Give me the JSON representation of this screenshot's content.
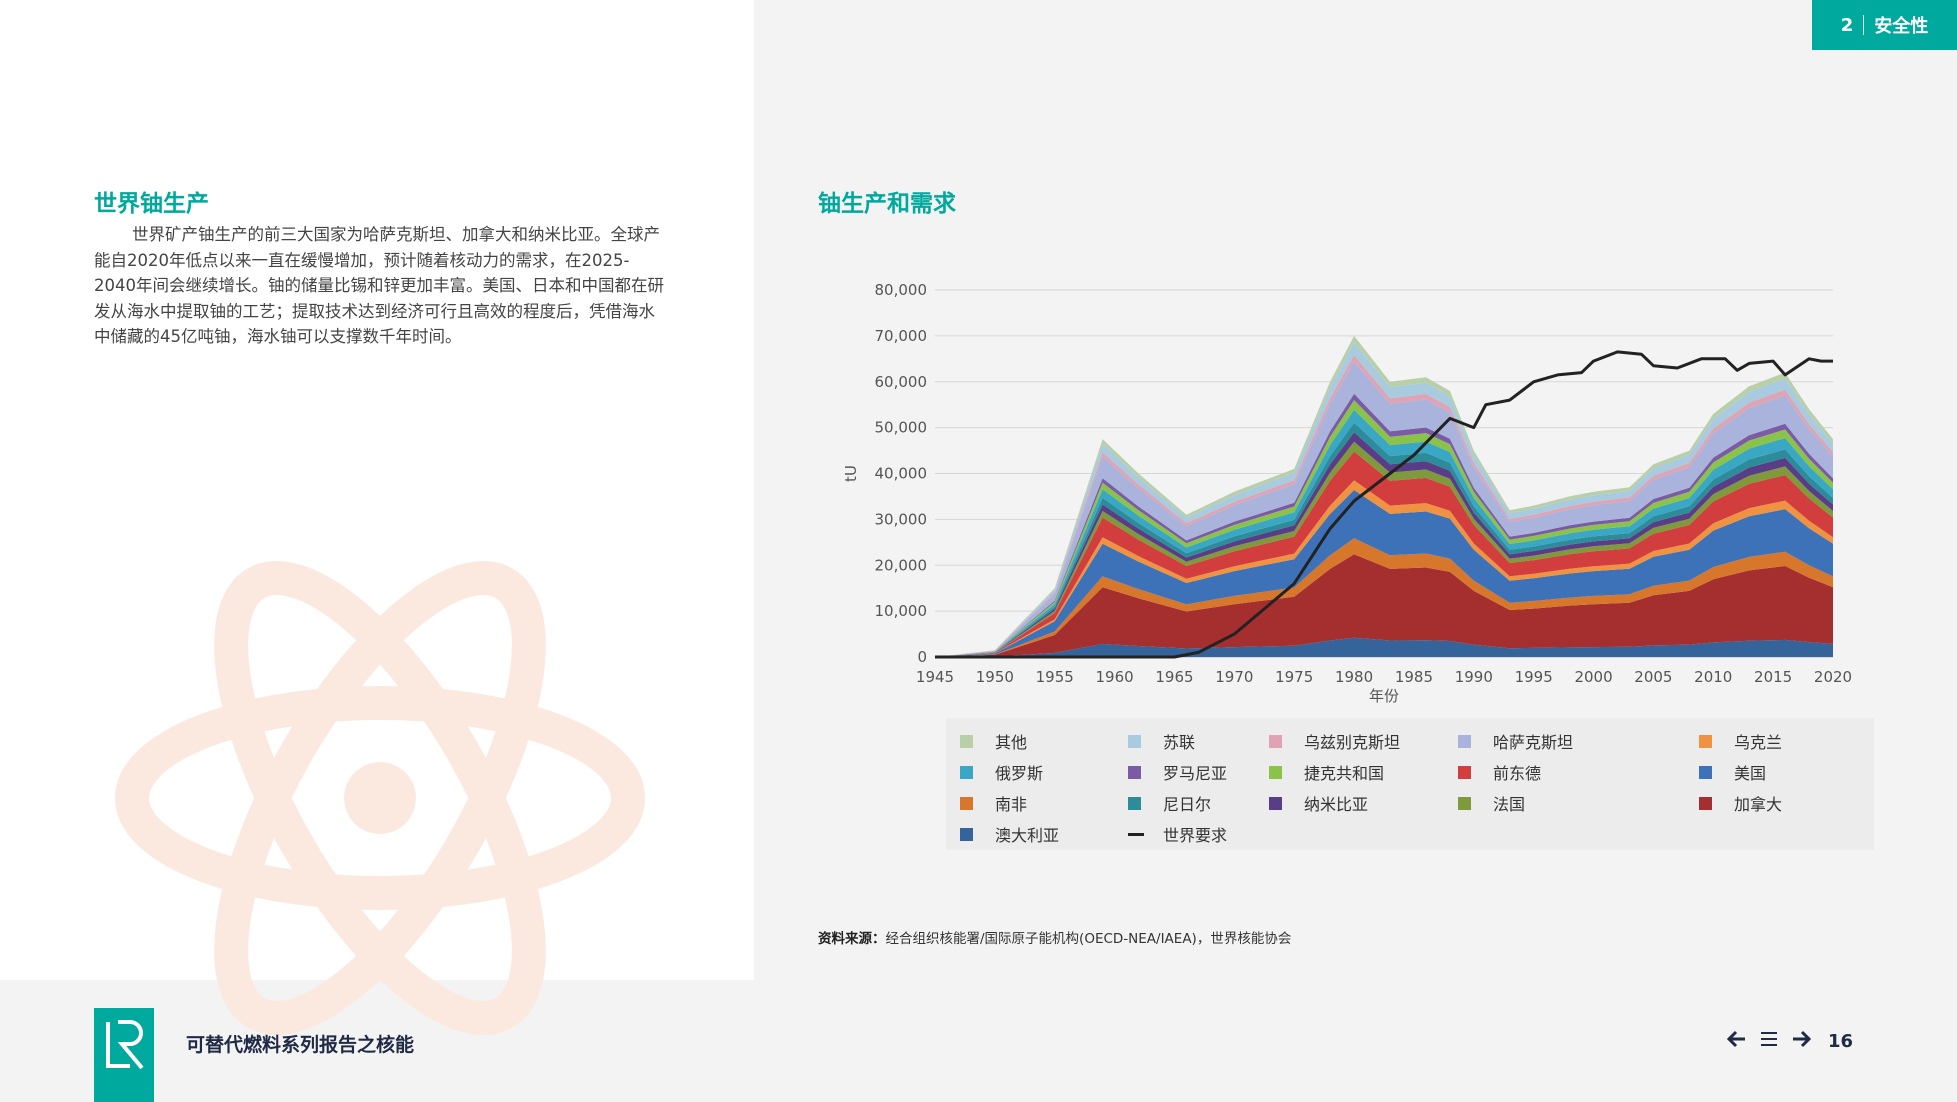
{
  "header": {
    "section_number": "2",
    "section_label": "安全性"
  },
  "left": {
    "title": "世界铀生产",
    "body": "世界矿产铀生产的前三大国家为哈萨克斯坦、加拿大和纳米比亚。全球产能自2020年低点以来一直在缓慢增加，预计随着核动力的需求，在2025-2040年间会继续增长。铀的储量比锡和锌更加丰富。美国、日本和中国都在研发从海水中提取铀的工艺；提取技术达到经济可行且高效的程度后，凭借海水中储藏的45亿吨铀，海水铀可以支撑数千年时间。"
  },
  "right": {
    "title": "铀生产和需求"
  },
  "chart_data": {
    "type": "area",
    "stacked": true,
    "xlabel": "年份",
    "ylabel": "tU",
    "x_ticks": [
      "1945",
      "1950",
      "1955",
      "1960",
      "1965",
      "1970",
      "1975",
      "1980",
      "1985",
      "1990",
      "1995",
      "2000",
      "2005",
      "2010",
      "2015",
      "2020"
    ],
    "y_ticks": [
      "0",
      "10,000",
      "20,000",
      "30,000",
      "40,000",
      "50,000",
      "60,000",
      "70,000",
      "80,000"
    ],
    "ylim": [
      0,
      80000
    ],
    "xlim": [
      1945,
      2020
    ],
    "grid": true,
    "total_production": [
      [
        1945,
        0
      ],
      [
        1950,
        1500
      ],
      [
        1955,
        15000
      ],
      [
        1959,
        47500
      ],
      [
        1962,
        40000
      ],
      [
        1966,
        31000
      ],
      [
        1970,
        36000
      ],
      [
        1975,
        41000
      ],
      [
        1978,
        60000
      ],
      [
        1980,
        70000
      ],
      [
        1983,
        60000
      ],
      [
        1986,
        61000
      ],
      [
        1988,
        58000
      ],
      [
        1990,
        45000
      ],
      [
        1993,
        32000
      ],
      [
        1995,
        33000
      ],
      [
        1998,
        35000
      ],
      [
        2000,
        36000
      ],
      [
        2003,
        37000
      ],
      [
        2005,
        42000
      ],
      [
        2008,
        45000
      ],
      [
        2010,
        53000
      ],
      [
        2013,
        59000
      ],
      [
        2016,
        62000
      ],
      [
        2018,
        54000
      ],
      [
        2020,
        47500
      ]
    ],
    "world_demand": [
      [
        1945,
        0
      ],
      [
        1965,
        0
      ],
      [
        1967,
        1000
      ],
      [
        1970,
        5000
      ],
      [
        1975,
        16000
      ],
      [
        1978,
        28000
      ],
      [
        1980,
        34000
      ],
      [
        1983,
        40000
      ],
      [
        1985,
        44000
      ],
      [
        1988,
        52000
      ],
      [
        1990,
        50000
      ],
      [
        1991,
        55000
      ],
      [
        1993,
        56000
      ],
      [
        1995,
        60000
      ],
      [
        1997,
        61500
      ],
      [
        1999,
        62000
      ],
      [
        2000,
        64500
      ],
      [
        2002,
        66500
      ],
      [
        2004,
        66000
      ],
      [
        2005,
        63500
      ],
      [
        2007,
        63000
      ],
      [
        2009,
        65000
      ],
      [
        2011,
        65000
      ],
      [
        2012,
        62500
      ],
      [
        2013,
        64000
      ],
      [
        2015,
        64500
      ],
      [
        2016,
        61500
      ],
      [
        2018,
        65000
      ],
      [
        2019,
        64500
      ],
      [
        2020,
        64500
      ]
    ],
    "series": [
      {
        "name": "澳大利亚",
        "color": "#35649a",
        "share": 0.06
      },
      {
        "name": "加拿大",
        "color": "#a52e2e",
        "share": 0.26
      },
      {
        "name": "南非",
        "color": "#d7772c",
        "share": 0.05
      },
      {
        "name": "美国",
        "color": "#3e72b8",
        "share": 0.15
      },
      {
        "name": "乌克兰",
        "color": "#ef9342",
        "share": 0.03
      },
      {
        "name": "前东德",
        "color": "#d23e3e",
        "share": 0.09
      },
      {
        "name": "法国",
        "color": "#7f9a3c",
        "share": 0.03
      },
      {
        "name": "纳米比亚",
        "color": "#5a3d87",
        "share": 0.03
      },
      {
        "name": "尼日尔",
        "color": "#2c8c99",
        "share": 0.03
      },
      {
        "name": "俄罗斯",
        "color": "#3aa7c4",
        "share": 0.04
      },
      {
        "name": "捷克共和国",
        "color": "#8bc34a",
        "share": 0.03
      },
      {
        "name": "罗马尼亚",
        "color": "#7b5ba6",
        "share": 0.02
      },
      {
        "name": "哈萨克斯坦",
        "color": "#a9b3db",
        "share": 0.1
      },
      {
        "name": "乌兹别克斯坦",
        "color": "#e0a3b3",
        "share": 0.02
      },
      {
        "name": "苏联",
        "color": "#a8cbdf",
        "share": 0.04
      },
      {
        "name": "其他",
        "color": "#b9cfa8",
        "share": 0.02
      }
    ],
    "demand_series": {
      "name": "世界要求",
      "color": "#222222"
    },
    "legend_position": "bottom"
  },
  "legend_items": [
    {
      "label": "其他",
      "color": "#b9cfa8",
      "kind": "swatch"
    },
    {
      "label": "苏联",
      "color": "#a8cbdf",
      "kind": "swatch"
    },
    {
      "label": "乌兹别克斯坦",
      "color": "#e0a3b3",
      "kind": "swatch"
    },
    {
      "label": "哈萨克斯坦",
      "color": "#a9b3db",
      "kind": "swatch"
    },
    {
      "label": "乌克兰",
      "color": "#ef9342",
      "kind": "swatch"
    },
    {
      "label": "俄罗斯",
      "color": "#3aa7c4",
      "kind": "swatch"
    },
    {
      "label": "罗马尼亚",
      "color": "#7b5ba6",
      "kind": "swatch"
    },
    {
      "label": "捷克共和国",
      "color": "#8bc34a",
      "kind": "swatch"
    },
    {
      "label": "前东德",
      "color": "#d23e3e",
      "kind": "swatch"
    },
    {
      "label": "美国",
      "color": "#3e72b8",
      "kind": "swatch"
    },
    {
      "label": "南非",
      "color": "#d7772c",
      "kind": "swatch"
    },
    {
      "label": "尼日尔",
      "color": "#2c8c99",
      "kind": "swatch"
    },
    {
      "label": "纳米比亚",
      "color": "#5a3d87",
      "kind": "swatch"
    },
    {
      "label": "法国",
      "color": "#7f9a3c",
      "kind": "swatch"
    },
    {
      "label": "加拿大",
      "color": "#a52e2e",
      "kind": "swatch"
    },
    {
      "label": "澳大利亚",
      "color": "#35649a",
      "kind": "swatch"
    },
    {
      "label": "世界要求",
      "color": "#222222",
      "kind": "line"
    }
  ],
  "source": {
    "label": "资料来源：",
    "text": "经合组织核能署/国际原子能机构(OECD-NEA/IAEA)，世界核能协会"
  },
  "footer": {
    "report_title": "可替代燃料系列报告之核能",
    "page_number": "16",
    "logo_text": "LR"
  },
  "colors": {
    "accent": "#00a99d",
    "navy": "#1f2a44",
    "atom_watermark": "#fbe9df",
    "panel_bg": "#f3f3f3"
  },
  "icons": [
    "arrow-left-icon",
    "menu-icon",
    "arrow-right-icon",
    "atom-watermark-icon"
  ]
}
